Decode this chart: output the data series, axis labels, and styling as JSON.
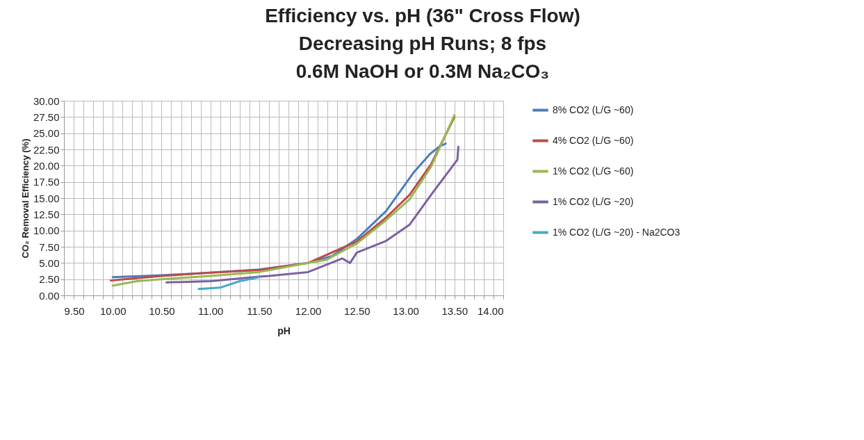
{
  "chart_data": {
    "type": "line",
    "title": "Efficiency vs. pH (36\" Cross Flow)",
    "subtitle": [
      "Decreasing pH Runs; 8 fps",
      "0.6M NaOH or 0.3M Na₂CO₃"
    ],
    "xlabel": "pH",
    "ylabel": "CO₂ Removal Efficiency (%)",
    "xlim": [
      9.5,
      14
    ],
    "ylim": [
      0,
      30
    ],
    "xticks": [
      {
        "value": 9.5,
        "label": "9.50"
      },
      {
        "value": 9.6,
        "label": null
      },
      {
        "value": 9.7,
        "label": null
      },
      {
        "value": 9.8,
        "label": null
      },
      {
        "value": 9.9,
        "label": null
      },
      {
        "value": 10,
        "label": "10.00"
      },
      {
        "value": 10.1,
        "label": null
      },
      {
        "value": 10.2,
        "label": null
      },
      {
        "value": 10.3,
        "label": null
      },
      {
        "value": 10.4,
        "label": null
      },
      {
        "value": 10.5,
        "label": "10.50"
      },
      {
        "value": 10.6,
        "label": null
      },
      {
        "value": 10.7,
        "label": null
      },
      {
        "value": 10.8,
        "label": null
      },
      {
        "value": 10.9,
        "label": null
      },
      {
        "value": 11,
        "label": "11.00"
      },
      {
        "value": 11.1,
        "label": null
      },
      {
        "value": 11.2,
        "label": null
      },
      {
        "value": 11.3,
        "label": null
      },
      {
        "value": 11.4,
        "label": null
      },
      {
        "value": 11.5,
        "label": "11.50"
      },
      {
        "value": 11.6,
        "label": null
      },
      {
        "value": 11.7,
        "label": null
      },
      {
        "value": 11.8,
        "label": null
      },
      {
        "value": 11.9,
        "label": null
      },
      {
        "value": 12,
        "label": "12.00"
      },
      {
        "value": 12.1,
        "label": null
      },
      {
        "value": 12.2,
        "label": null
      },
      {
        "value": 12.3,
        "label": null
      },
      {
        "value": 12.4,
        "label": null
      },
      {
        "value": 12.5,
        "label": "12.50"
      },
      {
        "value": 12.6,
        "label": null
      },
      {
        "value": 12.7,
        "label": null
      },
      {
        "value": 12.8,
        "label": null
      },
      {
        "value": 12.9,
        "label": null
      },
      {
        "value": 13,
        "label": "13.00"
      },
      {
        "value": 13.1,
        "label": null
      },
      {
        "value": 13.2,
        "label": null
      },
      {
        "value": 13.3,
        "label": null
      },
      {
        "value": 13.4,
        "label": null
      },
      {
        "value": 13.5,
        "label": "13.50"
      },
      {
        "value": 13.6,
        "label": null
      },
      {
        "value": 13.7,
        "label": null
      },
      {
        "value": 13.8,
        "label": null
      },
      {
        "value": 13.9,
        "label": null
      },
      {
        "value": 14,
        "label": "14.00"
      }
    ],
    "yticks": [
      {
        "value": 0,
        "label": "0.00"
      },
      {
        "value": 2.5,
        "label": "2.50"
      },
      {
        "value": 5,
        "label": "5.00"
      },
      {
        "value": 7.5,
        "label": "7.50"
      },
      {
        "value": 10,
        "label": "10.00"
      },
      {
        "value": 12.5,
        "label": "12.50"
      },
      {
        "value": 15,
        "label": "15.00"
      },
      {
        "value": 17.5,
        "label": "17.50"
      },
      {
        "value": 20,
        "label": "20.00"
      },
      {
        "value": 22.5,
        "label": "22.50"
      },
      {
        "value": 25,
        "label": "25.00"
      },
      {
        "value": 27.5,
        "label": "27.50"
      },
      {
        "value": 30,
        "label": "30.00"
      }
    ],
    "grid": true,
    "legend": "right",
    "marker": "none",
    "line_style": "solid",
    "series": [
      {
        "name": "8% CO2 (L/G ~60)",
        "color": "#4a7ebb",
        "x": [
          10.0,
          10.5,
          11.0,
          11.5,
          12.0,
          12.25,
          12.5,
          12.8,
          13.08,
          13.25,
          13.35,
          13.41
        ],
        "values": [
          2.8,
          3.1,
          3.5,
          4.0,
          5.0,
          6.1,
          8.7,
          13.0,
          18.9,
          21.8,
          23.0,
          23.4
        ]
      },
      {
        "name": "4% CO2 (L/G ~60)",
        "color": "#be4b48",
        "x": [
          9.98,
          10.5,
          11.0,
          11.5,
          12.0,
          12.5,
          12.8,
          13.04,
          13.26,
          13.5
        ],
        "values": [
          2.3,
          3.0,
          3.5,
          3.9,
          5.0,
          8.3,
          12.0,
          15.5,
          20.2,
          27.5
        ]
      },
      {
        "name": "1% CO2 (L/G ~60)",
        "color": "#98b954",
        "x": [
          10.0,
          10.1,
          10.25,
          10.5,
          11.0,
          11.5,
          12.0,
          12.19,
          12.5,
          12.8,
          13.04,
          13.26,
          13.5
        ],
        "values": [
          1.5,
          1.8,
          2.2,
          2.5,
          3.0,
          3.6,
          5.0,
          5.5,
          8.0,
          11.6,
          14.8,
          19.8,
          27.8
        ]
      },
      {
        "name": "1% CO2 (L/G ~20)",
        "color": "#7d60a0",
        "x": [
          10.55,
          11.0,
          11.5,
          11.6,
          12.0,
          12.35,
          12.43,
          12.5,
          12.8,
          13.04,
          13.28,
          13.53,
          13.54
        ],
        "values": [
          2.0,
          2.2,
          2.9,
          3.0,
          3.6,
          5.7,
          5.0,
          6.6,
          8.4,
          10.9,
          15.9,
          20.9,
          22.9
        ]
      },
      {
        "name": "1% CO2 (L/G ~20) - Na2CO3",
        "color": "#46aac5",
        "x": [
          10.88,
          11.1,
          11.3,
          11.5
        ],
        "values": [
          1.0,
          1.2,
          2.2,
          2.8
        ]
      }
    ]
  }
}
